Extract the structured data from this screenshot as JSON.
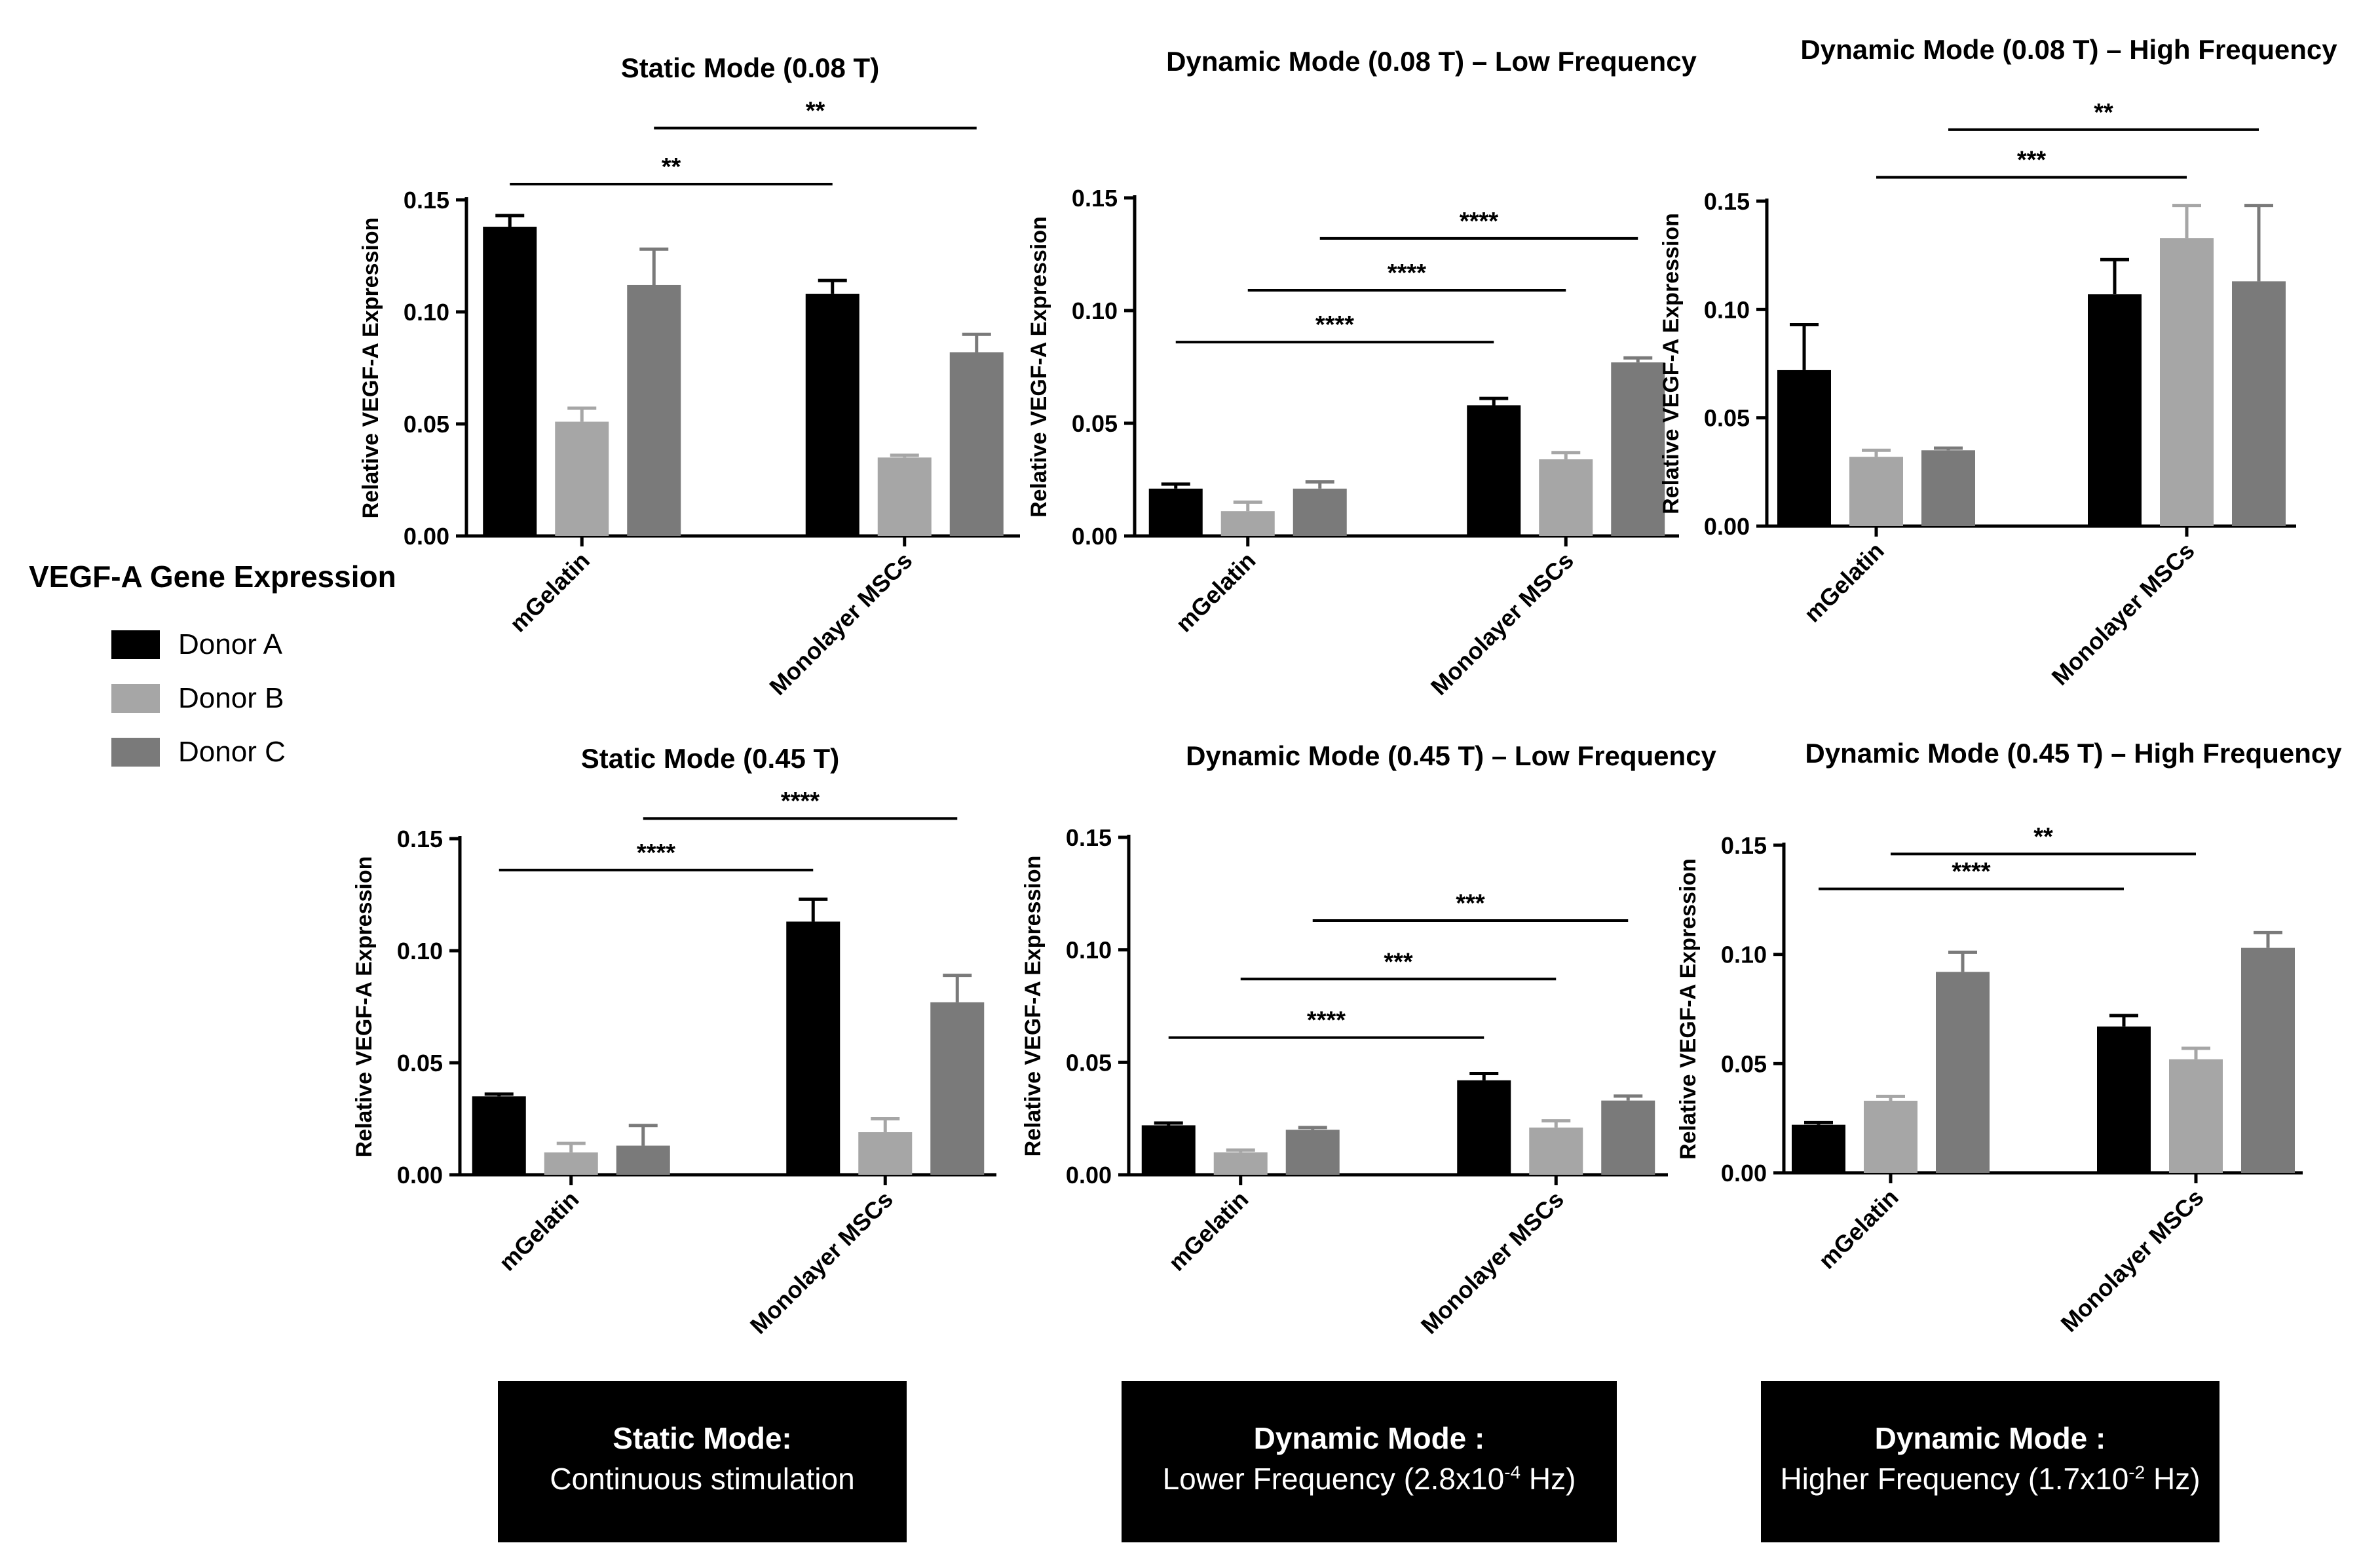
{
  "legend": {
    "title": "VEGF-A Gene Expression",
    "entries": [
      {
        "label": "Donor A",
        "color": "#000000"
      },
      {
        "label": "Donor B",
        "color": "#a6a6a6"
      },
      {
        "label": "Donor C",
        "color": "#7a7a7a"
      }
    ]
  },
  "footer": [
    {
      "title": "Static Mode:",
      "desc": "Continuous stimulation"
    },
    {
      "title": "Dynamic Mode :",
      "desc_prefix": "Lower Frequency (2.8x10",
      "desc_sup": "-4",
      "desc_suffix": " Hz)"
    },
    {
      "title": "Dynamic Mode :",
      "desc_prefix": "Higher Frequency (1.7x10",
      "desc_sup": "-2",
      "desc_suffix": " Hz)"
    }
  ],
  "chart_data": [
    {
      "type": "bar",
      "title": "Static Mode (0.08 T)",
      "ylabel": "Relative VEGF-A Expression",
      "ylim": [
        0,
        0.15
      ],
      "yticks": [
        "0.00",
        "0.05",
        "0.10",
        "0.15"
      ],
      "categories": [
        "mGelatin",
        "Monolayer MSCs"
      ],
      "series": [
        {
          "name": "Donor A",
          "values": [
            0.138,
            0.108
          ],
          "errors": [
            0.005,
            0.006
          ]
        },
        {
          "name": "Donor B",
          "values": [
            0.051,
            0.035
          ],
          "errors": [
            0.006,
            0.001
          ]
        },
        {
          "name": "Donor C",
          "values": [
            0.112,
            0.082
          ],
          "errors": [
            0.016,
            0.008
          ]
        }
      ],
      "significance": [
        {
          "from": [
            0,
            0
          ],
          "to": [
            1,
            0
          ],
          "label": "**",
          "level": 0.157
        },
        {
          "from": [
            0,
            2
          ],
          "to": [
            1,
            2
          ],
          "label": "**",
          "level": 0.182
        }
      ]
    },
    {
      "type": "bar",
      "title": "Dynamic  Mode  (0.08 T) – Low  Frequency",
      "ylabel": "Relative VEGF-A Expression",
      "ylim": [
        0,
        0.15
      ],
      "yticks": [
        "0.00",
        "0.05",
        "0.10",
        "0.15"
      ],
      "categories": [
        "mGelatin",
        "Monolayer MSCs"
      ],
      "series": [
        {
          "name": "Donor A",
          "values": [
            0.021,
            0.058
          ],
          "errors": [
            0.002,
            0.003
          ]
        },
        {
          "name": "Donor B",
          "values": [
            0.011,
            0.034
          ],
          "errors": [
            0.004,
            0.003
          ]
        },
        {
          "name": "Donor C",
          "values": [
            0.021,
            0.077
          ],
          "errors": [
            0.003,
            0.002
          ]
        }
      ],
      "significance": [
        {
          "from": [
            0,
            0
          ],
          "to": [
            1,
            0
          ],
          "label": "****",
          "level": 0.086
        },
        {
          "from": [
            0,
            1
          ],
          "to": [
            1,
            1
          ],
          "label": "****",
          "level": 0.109
        },
        {
          "from": [
            0,
            2
          ],
          "to": [
            1,
            2
          ],
          "label": "****",
          "level": 0.132
        }
      ]
    },
    {
      "type": "bar",
      "title": "Dynamic  Mode  (0.08 T) – High Frequency",
      "ylabel": "Relative VEGF-A Expression",
      "ylim": [
        0,
        0.15
      ],
      "yticks": [
        "0.00",
        "0.05",
        "0.10",
        "0.15"
      ],
      "categories": [
        "mGelatin",
        "Monolayer MSCs"
      ],
      "series": [
        {
          "name": "Donor A",
          "values": [
            0.072,
            0.107
          ],
          "errors": [
            0.021,
            0.016
          ]
        },
        {
          "name": "Donor B",
          "values": [
            0.032,
            0.133
          ],
          "errors": [
            0.003,
            0.015
          ]
        },
        {
          "name": "Donor C",
          "values": [
            0.035,
            0.113
          ],
          "errors": [
            0.001,
            0.035
          ]
        }
      ],
      "significance": [
        {
          "from": [
            0,
            1
          ],
          "to": [
            1,
            1
          ],
          "label": "***",
          "level": 0.161
        },
        {
          "from": [
            0,
            2
          ],
          "to": [
            1,
            2
          ],
          "label": "**",
          "level": 0.183
        }
      ]
    },
    {
      "type": "bar",
      "title": "Static Mode (0.45 T)",
      "ylabel": "Relative VEGF-A Expression",
      "ylim": [
        0,
        0.15
      ],
      "yticks": [
        "0.00",
        "0.05",
        "0.10",
        "0.15"
      ],
      "categories": [
        "mGelatin",
        "Monolayer MSCs"
      ],
      "series": [
        {
          "name": "Donor A",
          "values": [
            0.035,
            0.113
          ],
          "errors": [
            0.001,
            0.01
          ]
        },
        {
          "name": "Donor B",
          "values": [
            0.01,
            0.019
          ],
          "errors": [
            0.004,
            0.006
          ]
        },
        {
          "name": "Donor C",
          "values": [
            0.013,
            0.077
          ],
          "errors": [
            0.009,
            0.012
          ]
        }
      ],
      "significance": [
        {
          "from": [
            0,
            0
          ],
          "to": [
            1,
            0
          ],
          "label": "****",
          "level": 0.136
        },
        {
          "from": [
            0,
            2
          ],
          "to": [
            1,
            2
          ],
          "label": "****",
          "level": 0.159
        }
      ]
    },
    {
      "type": "bar",
      "title": "Dynamic  Mode  (0.45 T) – Low Frequency",
      "ylabel": "Relative VEGF-A Expression",
      "ylim": [
        0,
        0.15
      ],
      "yticks": [
        "0.00",
        "0.05",
        "0.10",
        "0.15"
      ],
      "categories": [
        "mGelatin",
        "Monolayer MSCs"
      ],
      "series": [
        {
          "name": "Donor A",
          "values": [
            0.022,
            0.042
          ],
          "errors": [
            0.001,
            0.003
          ]
        },
        {
          "name": "Donor B",
          "values": [
            0.01,
            0.021
          ],
          "errors": [
            0.001,
            0.003
          ]
        },
        {
          "name": "Donor C",
          "values": [
            0.02,
            0.033
          ],
          "errors": [
            0.001,
            0.002
          ]
        }
      ],
      "significance": [
        {
          "from": [
            0,
            0
          ],
          "to": [
            1,
            0
          ],
          "label": "****",
          "level": 0.061
        },
        {
          "from": [
            0,
            1
          ],
          "to": [
            1,
            1
          ],
          "label": "***",
          "level": 0.087
        },
        {
          "from": [
            0,
            2
          ],
          "to": [
            1,
            2
          ],
          "label": "***",
          "level": 0.113
        }
      ]
    },
    {
      "type": "bar",
      "title": "Dynamic  Mode  (0.45 T) – High Frequency",
      "ylabel": "Relative VEGF-A Expression",
      "ylim": [
        0,
        0.15
      ],
      "yticks": [
        "0.00",
        "0.05",
        "0.10",
        "0.15"
      ],
      "categories": [
        "mGelatin",
        "Monolayer MSCs"
      ],
      "series": [
        {
          "name": "Donor A",
          "values": [
            0.022,
            0.067
          ],
          "errors": [
            0.001,
            0.005
          ]
        },
        {
          "name": "Donor B",
          "values": [
            0.033,
            0.052
          ],
          "errors": [
            0.002,
            0.005
          ]
        },
        {
          "name": "Donor C",
          "values": [
            0.092,
            0.103
          ],
          "errors": [
            0.009,
            0.007
          ]
        }
      ],
      "significance": [
        {
          "from": [
            0,
            0
          ],
          "to": [
            1,
            0
          ],
          "label": "****",
          "level": 0.13
        },
        {
          "from": [
            0,
            1
          ],
          "to": [
            1,
            1
          ],
          "label": "**",
          "level": 0.146
        }
      ]
    }
  ]
}
